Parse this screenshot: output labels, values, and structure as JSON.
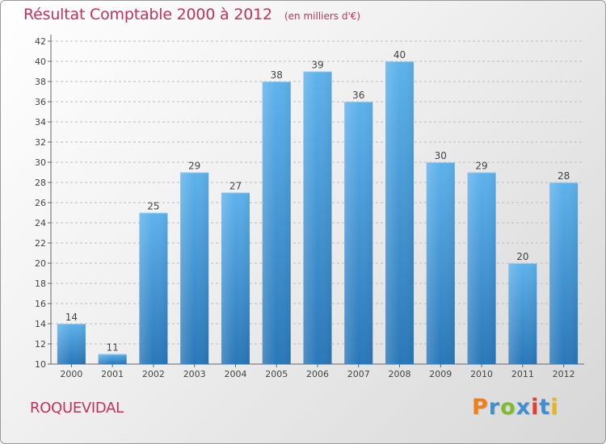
{
  "header": {
    "title": "Résultat Comptable 2000 à 2012",
    "subtitle": "(en milliers d'€)"
  },
  "footer": {
    "commune": "ROQUEVIDAL",
    "logo_text": "Proxiti",
    "logo_colors": [
      "#f07f1b",
      "#3f8fd2",
      "#7dbb2f",
      "#3f8fd2",
      "#e63c2f",
      "#3f8fd2",
      "#f0b21b"
    ]
  },
  "colors": {
    "title": "#c0325e",
    "bar_top": "#5eb2ec",
    "bar_bottom": "#2a77b8",
    "axis": "#666666",
    "grid": "#bdbdbd"
  },
  "chart_data": {
    "type": "bar",
    "title": "Résultat Comptable 2000 à 2012",
    "subtitle": "(en milliers d'€)",
    "categories": [
      "2000",
      "2001",
      "2002",
      "2003",
      "2004",
      "2005",
      "2006",
      "2007",
      "2008",
      "2009",
      "2010",
      "2011",
      "2012"
    ],
    "values": [
      14,
      11,
      25,
      29,
      27,
      38,
      39,
      36,
      40,
      30,
      29,
      20,
      28
    ],
    "ylim": [
      10,
      42
    ],
    "yticks": [
      10,
      12,
      14,
      16,
      18,
      20,
      22,
      24,
      26,
      28,
      30,
      32,
      34,
      36,
      38,
      40,
      42
    ],
    "xlabel": "",
    "ylabel": "",
    "grid": true,
    "data_labels": true
  }
}
